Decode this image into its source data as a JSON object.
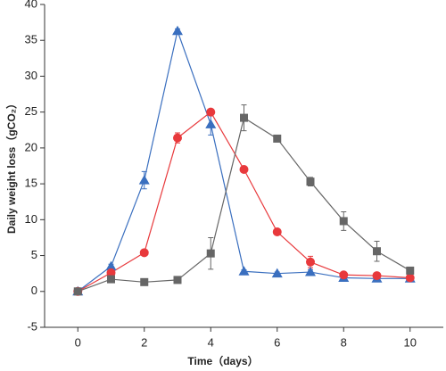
{
  "chart_data": {
    "type": "line",
    "x_label": "Time（days）",
    "y_label": "Daily weight loss（gCO₂）",
    "x": [
      0,
      1,
      2,
      3,
      4,
      5,
      6,
      7,
      8,
      9,
      10
    ],
    "xlim": [
      -1,
      11
    ],
    "xticks": [
      0,
      2,
      4,
      6,
      8,
      10
    ],
    "ylim": [
      -5,
      40
    ],
    "yticks": [
      -5,
      0,
      5,
      10,
      15,
      20,
      25,
      30,
      35,
      40
    ],
    "series": [
      {
        "color": "#3a6fbf",
        "marker": "triangle",
        "values": [
          0,
          3.5,
          15.5,
          36.3,
          23.3,
          2.8,
          2.5,
          2.7,
          1.9,
          1.8,
          1.8
        ],
        "errors": [
          0.2,
          0.3,
          1.2,
          0.3,
          1.5,
          0.2,
          0.2,
          0.3,
          0.2,
          0.2,
          0.2
        ]
      },
      {
        "color": "#e8393c",
        "marker": "circle",
        "values": [
          0,
          2.6,
          5.4,
          21.4,
          25.0,
          17.0,
          8.3,
          4.1,
          2.3,
          2.2,
          1.9
        ],
        "errors": [
          0.2,
          0.2,
          0.2,
          0.7,
          0.2,
          0.2,
          0.3,
          0.8,
          0.2,
          0.2,
          0.2
        ]
      },
      {
        "color": "#666666",
        "marker": "square",
        "values": [
          0,
          1.7,
          1.3,
          1.6,
          5.3,
          24.2,
          21.3,
          15.3,
          9.8,
          5.6,
          2.9
        ],
        "errors": [
          0.1,
          0.2,
          0.2,
          0.2,
          2.2,
          1.8,
          0.3,
          0.6,
          1.3,
          1.4,
          0.4
        ]
      }
    ]
  }
}
